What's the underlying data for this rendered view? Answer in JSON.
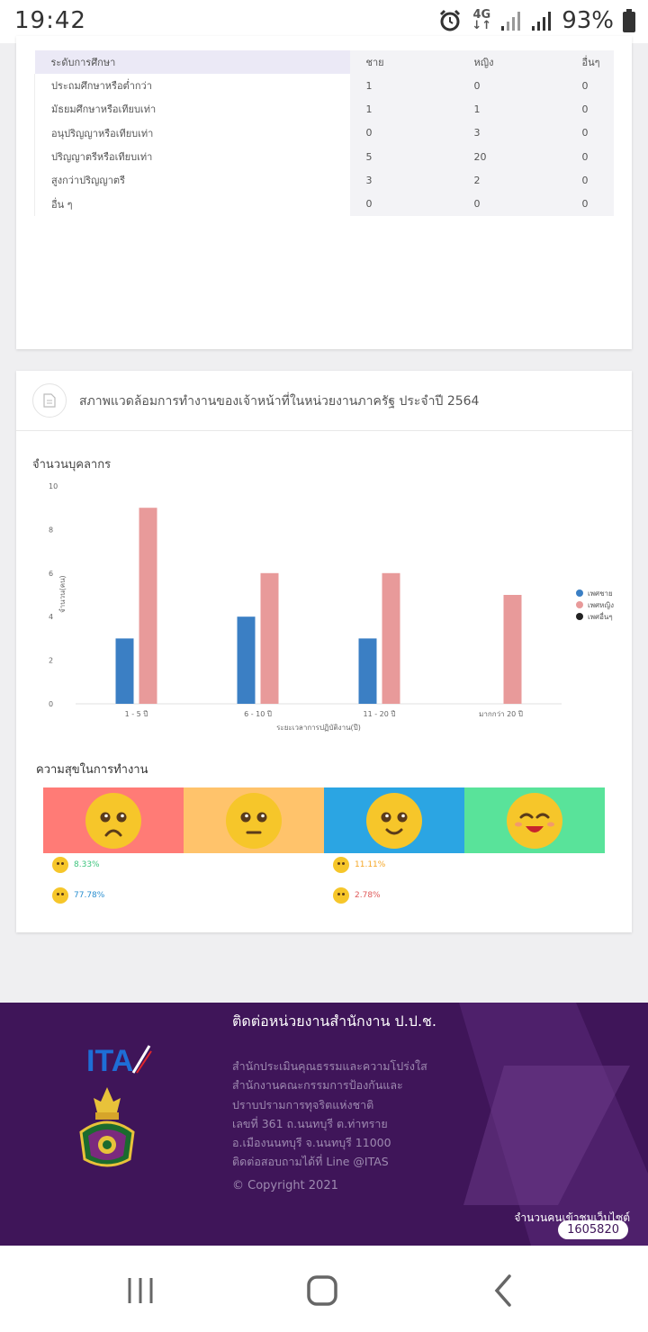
{
  "status_bar": {
    "time": "19:42",
    "network": "4G",
    "battery": "93%",
    "icons": [
      "alarm-icon",
      "signal-icon",
      "battery-icon"
    ]
  },
  "education_table": {
    "headers": [
      "ระดับการศึกษา",
      "ชาย",
      "หญิง",
      "อื่นๆ"
    ],
    "rows": [
      [
        "ประถมศึกษาหรือต่ำกว่า",
        "1",
        "0",
        "0"
      ],
      [
        "มัธยมศึกษาหรือเทียบเท่า",
        "1",
        "1",
        "0"
      ],
      [
        "อนุปริญญาหรือเทียบเท่า",
        "0",
        "3",
        "0"
      ],
      [
        "ปริญญาตรีหรือเทียบเท่า",
        "5",
        "20",
        "0"
      ],
      [
        "สูงกว่าปริญญาตรี",
        "3",
        "2",
        "0"
      ],
      [
        "อื่น ๆ",
        "0",
        "0",
        "0"
      ]
    ]
  },
  "environment_card": {
    "title": "สภาพแวดล้อมการทำงานของเจ้าหน้าที่ในหน่วยงานภาครัฐ ประจำปี 2564",
    "chart_title": "จำนวนบุคลากร",
    "happiness_title": "ความสุขในการทำงาน"
  },
  "chart_data": {
    "type": "bar",
    "title": "จำนวนบุคลากร",
    "xlabel": "ระยะเวลาการปฏิบัติงาน(ปี)",
    "ylabel": "จำนวน(คน)",
    "ylim": [
      0,
      10
    ],
    "yticks": [
      "0",
      "2",
      "4",
      "6",
      "8",
      "10"
    ],
    "categories": [
      "1 - 5 ปี",
      "6 - 10 ปี",
      "11 - 20 ปี",
      "มากกว่า 20 ปี"
    ],
    "series": [
      {
        "name": "เพศชาย",
        "color": "#3b7fc4",
        "values": [
          3,
          4,
          3,
          0
        ]
      },
      {
        "name": "เพศหญิง",
        "color": "#e89a9a",
        "values": [
          9,
          6,
          6,
          5
        ]
      },
      {
        "name": "เพศอื่นๆ",
        "color": "#222222",
        "values": [
          0,
          0,
          0,
          0
        ]
      }
    ],
    "grid": false,
    "legend": "right"
  },
  "happiness": {
    "faces": [
      {
        "name": "sad-face-icon",
        "color": "#ff7b76"
      },
      {
        "name": "neutral-face-icon",
        "color": "#ffc36b"
      },
      {
        "name": "smile-face-icon",
        "color": "#2ba5e3"
      },
      {
        "name": "happy-face-icon",
        "color": "#59e39a"
      }
    ],
    "stats": [
      {
        "value": "8.33%",
        "color": "#3cc47c"
      },
      {
        "value": "11.11%",
        "color": "#f5a623"
      },
      {
        "value": "77.78%",
        "color": "#2a8fd0"
      },
      {
        "value": "2.78%",
        "color": "#e05a5a"
      }
    ]
  },
  "footer": {
    "title": "ติดต่อหน่วยงานสำนักงาน ป.ป.ช.",
    "lines": [
      "สำนักประเมินคุณธรรมและความโปร่งใส",
      "สำนักงานคณะกรรมการป้องกันและ",
      "ปราบปรามการทุจริตแห่งชาติ",
      "เลขที่ 361 ถ.นนทบุรี ต.ท่าทราย",
      "อ.เมืองนนทบุรี จ.นนทบุรี 11000",
      "ติดต่อสอบถามได้ที่ Line @ITAS"
    ],
    "copyright": "© Copyright 2021",
    "visit_label": "จำนวนคนเข้าชมเว็บไซต์",
    "visit_count": "1605820",
    "logo_text": "ITA"
  }
}
